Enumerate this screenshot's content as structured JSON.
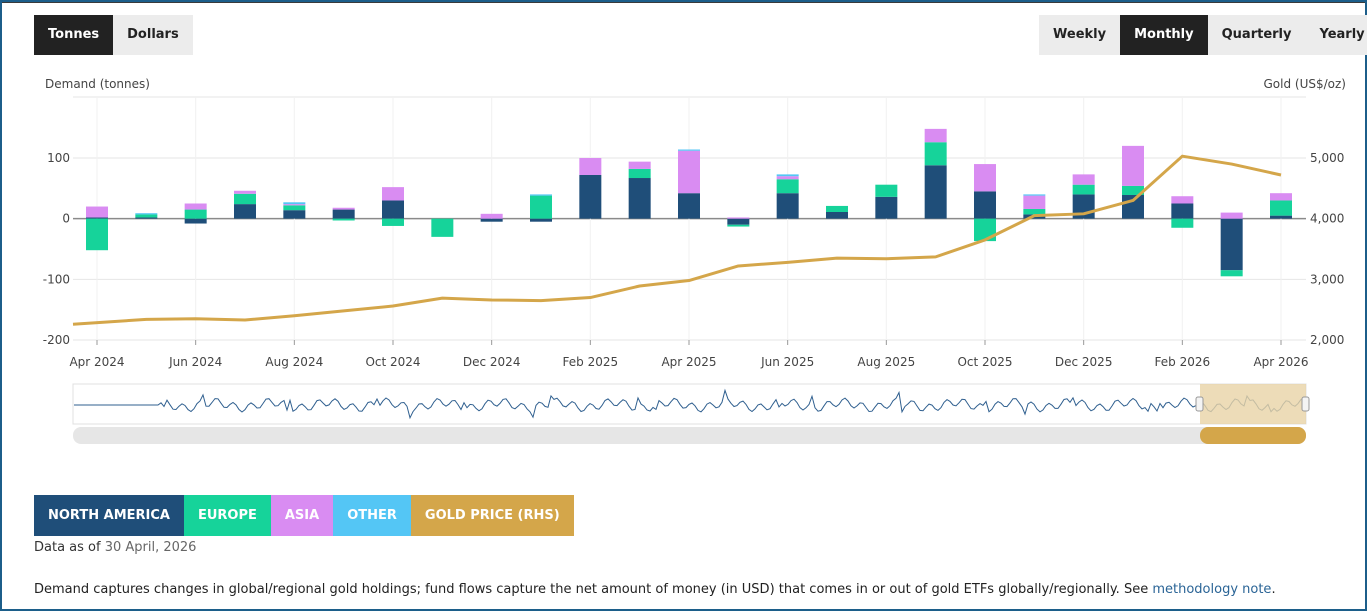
{
  "toggles": {
    "unit": [
      "Tonnes",
      "Dollars"
    ],
    "unit_active": 0,
    "frequency": [
      "Weekly",
      "Monthly",
      "Quarterly",
      "Yearly"
    ],
    "frequency_active": 1
  },
  "chart_data": {
    "type": "bar",
    "stacked": true,
    "ylabel_left": "Demand (tonnes)",
    "ylabel_right": "Gold (US$/oz)",
    "ylim_left": [
      -200,
      100
    ],
    "yticks_left": [
      "100",
      "0",
      "-100",
      "-200"
    ],
    "ylim_right": [
      2000,
      5000
    ],
    "yticks_right": [
      "5,000",
      "4,000",
      "3,000",
      "2,000"
    ],
    "xtick_labels": [
      "Apr 2024",
      "Jun 2024",
      "Aug 2024",
      "Oct 2024",
      "Dec 2024",
      "Feb 2025",
      "Apr 2025",
      "Jun 2025",
      "Aug 2025",
      "Oct 2025",
      "Dec 2025",
      "Feb 2026",
      "Apr 2026"
    ],
    "categories": [
      "Apr 2024",
      "May 2024",
      "Jun 2024",
      "Jul 2024",
      "Aug 2024",
      "Sep 2024",
      "Oct 2024",
      "Nov 2024",
      "Dec 2024",
      "Jan 2025",
      "Feb 2025",
      "Mar 2025",
      "Apr 2025",
      "May 2025",
      "Jun 2025",
      "Jul 2025",
      "Aug 2025",
      "Sep 2025",
      "Oct 2025",
      "Nov 2025",
      "Dec 2025",
      "Jan 2026",
      "Feb 2026",
      "Mar 2026",
      "Apr 2026"
    ],
    "series": [
      {
        "name": "North America",
        "color": "#1f4e79",
        "values": [
          2,
          2,
          -8,
          24,
          14,
          15,
          30,
          0,
          -5,
          -5,
          72,
          67,
          42,
          -10,
          42,
          11,
          36,
          88,
          45,
          7,
          40,
          39,
          25,
          -85,
          5
        ]
      },
      {
        "name": "Europe",
        "color": "#16d39a",
        "values": [
          -52,
          5,
          15,
          17,
          8,
          -3,
          -12,
          -30,
          0,
          38,
          0,
          15,
          0,
          -3,
          23,
          10,
          20,
          38,
          -37,
          9,
          16,
          15,
          -15,
          -10,
          25
        ]
      },
      {
        "name": "Asia",
        "color": "#d98cf2",
        "values": [
          18,
          0,
          10,
          5,
          2,
          3,
          22,
          0,
          8,
          0,
          28,
          12,
          70,
          2,
          5,
          0,
          0,
          22,
          45,
          22,
          17,
          66,
          12,
          10,
          12
        ]
      },
      {
        "name": "Other",
        "color": "#54c6f5",
        "values": [
          0,
          2,
          0,
          0,
          3,
          0,
          0,
          0,
          0,
          2,
          0,
          0,
          2,
          0,
          3,
          0,
          0,
          0,
          0,
          2,
          0,
          0,
          0,
          0,
          0
        ]
      }
    ],
    "line": {
      "name": "Gold price (RHS)",
      "color": "#d4a64a",
      "values": [
        2260,
        2340,
        2350,
        2330,
        2400,
        2480,
        2560,
        2690,
        2660,
        2650,
        2700,
        2890,
        2980,
        3220,
        3280,
        3350,
        3340,
        3370,
        3650,
        4050,
        4080,
        4300,
        5030,
        4900,
        4720
      ]
    },
    "grid": true,
    "legend_position": "bottom-left"
  },
  "legend": [
    {
      "label": "NORTH AMERICA",
      "color": "#1f4e79"
    },
    {
      "label": "EUROPE",
      "color": "#16d39a"
    },
    {
      "label": "ASIA",
      "color": "#d98cf2"
    },
    {
      "label": "OTHER",
      "color": "#54c6f5"
    },
    {
      "label": "GOLD PRICE (RHS)",
      "color": "#d4a64a"
    }
  ],
  "data_as_of": {
    "prefix": "Data as of",
    "date": "30 April, 2026"
  },
  "footnote": {
    "text": "Demand captures changes in global/regional gold holdings; fund flows capture the net amount of money (in USD) that comes in or out of gold ETFs globally/regionally. See ",
    "link": "methodology note",
    "suffix": "."
  },
  "navigator": {
    "series_color": "#2f5f8f",
    "selection_color": "#e9d3a6",
    "handle_color": "#d4a64a"
  }
}
